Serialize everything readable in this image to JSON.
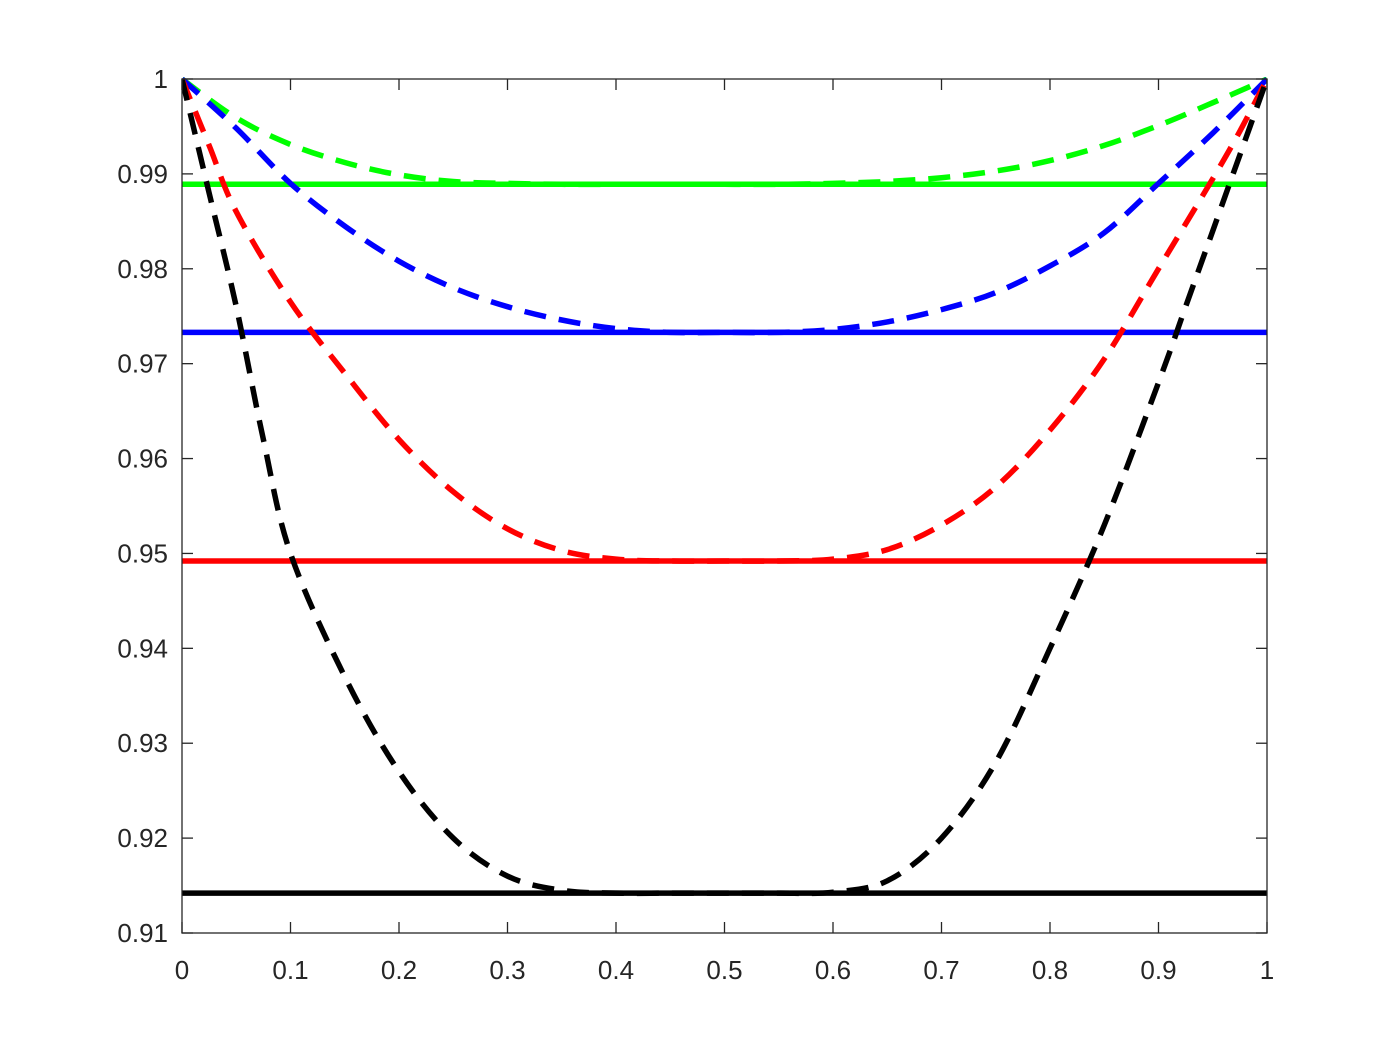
{
  "chart_data": {
    "type": "line",
    "title": "",
    "xlabel": "",
    "ylabel": "",
    "xlim": [
      0,
      1
    ],
    "ylim": [
      0.91,
      1
    ],
    "grid": false,
    "legend": "none",
    "x_ticks": [
      "0",
      "0.1",
      "0.2",
      "0.3",
      "0.4",
      "0.5",
      "0.6",
      "0.7",
      "0.8",
      "0.9",
      "1"
    ],
    "y_ticks": [
      "0.91",
      "0.92",
      "0.93",
      "0.94",
      "0.95",
      "0.96",
      "0.97",
      "0.98",
      "0.99",
      "1"
    ],
    "series": [
      {
        "color": "#00ff00",
        "style": "solid",
        "x": [
          0,
          1
        ],
        "y": [
          0.9889,
          0.9889
        ]
      },
      {
        "color": "#00ff00",
        "style": "dashed",
        "x": [
          0,
          0.05,
          0.1,
          0.15,
          0.2,
          0.25,
          0.3,
          0.35,
          0.4,
          0.45,
          0.5,
          0.55,
          0.6,
          0.65,
          0.7,
          0.75,
          0.8,
          0.85,
          0.9,
          0.95,
          1
        ],
        "y": [
          1.0,
          0.9959,
          0.9931,
          0.9912,
          0.9899,
          0.9892,
          0.989,
          0.9889,
          0.9889,
          0.9889,
          0.9889,
          0.9889,
          0.989,
          0.9892,
          0.9896,
          0.9903,
          0.9914,
          0.993,
          0.9951,
          0.9975,
          1.0
        ]
      },
      {
        "color": "#0000ff",
        "style": "solid",
        "x": [
          0,
          1
        ],
        "y": [
          0.9733,
          0.9733
        ]
      },
      {
        "color": "#0000ff",
        "style": "dashed",
        "x": [
          0,
          0.05,
          0.1,
          0.15,
          0.2,
          0.25,
          0.3,
          0.35,
          0.4,
          0.45,
          0.5,
          0.55,
          0.6,
          0.65,
          0.7,
          0.75,
          0.8,
          0.85,
          0.9,
          0.95,
          1
        ],
        "y": [
          1.0,
          0.9948,
          0.989,
          0.9845,
          0.9808,
          0.978,
          0.976,
          0.9746,
          0.9737,
          0.9733,
          0.9733,
          0.9733,
          0.9736,
          0.9744,
          0.9757,
          0.9775,
          0.9803,
          0.9838,
          0.989,
          0.9943,
          1.0
        ]
      },
      {
        "color": "#ff0000",
        "style": "solid",
        "x": [
          0,
          1
        ],
        "y": [
          0.9492,
          0.9492
        ]
      },
      {
        "color": "#ff0000",
        "style": "dashed",
        "x": [
          0,
          0.025,
          0.05,
          0.1,
          0.15,
          0.2,
          0.25,
          0.3,
          0.35,
          0.4,
          0.45,
          0.5,
          0.55,
          0.6,
          0.65,
          0.7,
          0.75,
          0.8,
          0.85,
          0.9,
          0.95,
          0.975,
          1
        ],
        "y": [
          1.0,
          0.993,
          0.986,
          0.9765,
          0.969,
          0.962,
          0.9565,
          0.9526,
          0.9503,
          0.9494,
          0.9492,
          0.9492,
          0.9492,
          0.9494,
          0.9504,
          0.953,
          0.957,
          0.963,
          0.9705,
          0.98,
          0.9895,
          0.9945,
          1.0
        ]
      },
      {
        "color": "#000000",
        "style": "solid",
        "x": [
          0,
          1
        ],
        "y": [
          0.9142,
          0.9142
        ]
      },
      {
        "color": "#000000",
        "style": "dashed",
        "x": [
          0,
          0.025,
          0.05,
          0.075,
          0.1,
          0.15,
          0.2,
          0.25,
          0.3,
          0.35,
          0.4,
          0.45,
          0.5,
          0.55,
          0.6,
          0.65,
          0.7,
          0.75,
          0.8,
          0.85,
          0.9,
          0.925,
          0.95,
          0.975,
          1
        ],
        "y": [
          1.0,
          0.988,
          0.976,
          0.962,
          0.95,
          0.937,
          0.927,
          0.92,
          0.916,
          0.9145,
          0.9142,
          0.9142,
          0.9142,
          0.9142,
          0.9143,
          0.9155,
          0.92,
          0.928,
          0.94,
          0.953,
          0.968,
          0.976,
          0.984,
          0.992,
          1.0
        ]
      }
    ]
  }
}
